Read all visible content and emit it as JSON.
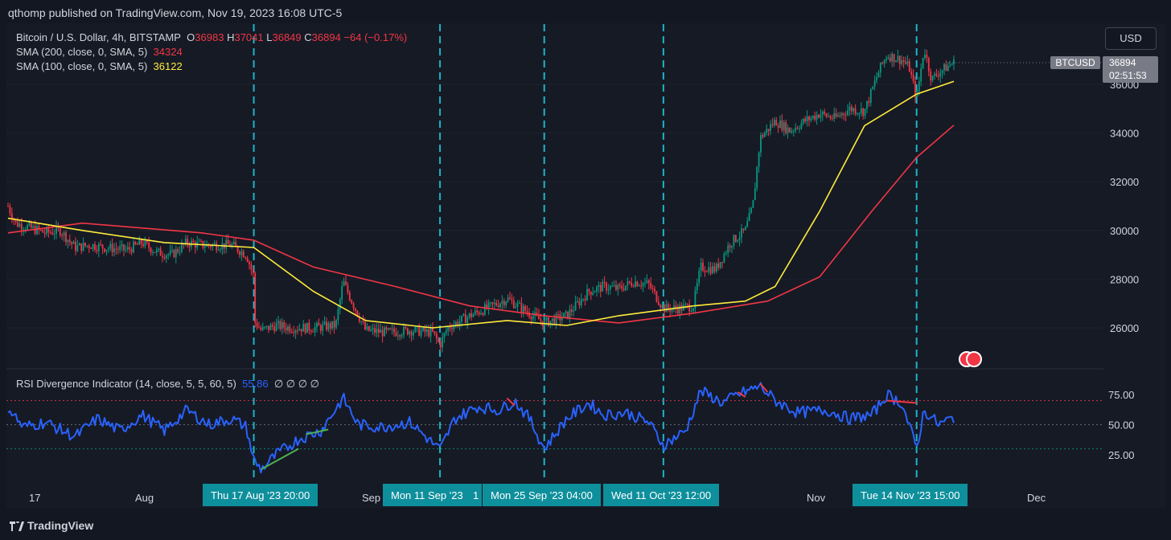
{
  "header": {
    "published": "qthomp published on TradingView.com, Nov 19, 2023 16:08 UTC-5"
  },
  "legend": {
    "symbol": "Bitcoin / U.S. Dollar, 4h, BITSTAMP",
    "o_label": "O",
    "o_value": "36983",
    "h_label": "H",
    "h_value": "37041",
    "l_label": "L",
    "l_value": "36849",
    "c_label": "C",
    "c_value": "36894",
    "change": "−64 (−0.17%)",
    "sma200_label": "SMA (200, close, 0, SMA, 5)",
    "sma200_value": "34324",
    "sma100_label": "SMA (100, close, 0, SMA, 5)",
    "sma100_value": "36122",
    "rsi_label": "RSI Divergence Indicator (14, close, 5, 5, 60, 5)",
    "rsi_value": "55.86",
    "rsi_extra": "∅ ∅ ∅ ∅"
  },
  "price_scale": {
    "currency": "USD",
    "symbol_tag": "BTCUSD",
    "last_price": "36894",
    "countdown": "02:51:53"
  },
  "colors": {
    "up": "#089981",
    "down": "#f23645",
    "sma200": "#f23645",
    "sma100": "#ffeb3b",
    "rsi": "#2962ff",
    "vline": "#1bb5c7",
    "bg": "#161a25"
  },
  "x_axis": {
    "labels": [
      "17",
      "Aug",
      "Sep",
      "Nov",
      "Dec"
    ],
    "highlights": [
      "Thu 17 Aug '23   20:00",
      "Mon 11 Sep '23",
      "1",
      "Mon 25 Sep '23   04:00",
      "Wed 11 Oct '23   12:00",
      "Tue 14 Nov '23   15:00"
    ]
  },
  "footer": {
    "brand": "TradingView"
  },
  "chart_data": [
    {
      "type": "candlestick",
      "title": "Bitcoin / U.S. Dollar, 4h, BITSTAMP",
      "ylim": [
        24500,
        38500
      ],
      "yticks": [
        26000,
        28000,
        30000,
        32000,
        34000,
        36000
      ],
      "close_path": [
        [
          "2023-07-15",
          31000
        ],
        [
          "2023-07-16",
          30300
        ],
        [
          "2023-07-18",
          30100
        ],
        [
          "2023-07-20",
          29900
        ],
        [
          "2023-07-22",
          30000
        ],
        [
          "2023-07-24",
          29300
        ],
        [
          "2023-07-26",
          29400
        ],
        [
          "2023-07-28",
          29300
        ],
        [
          "2023-07-31",
          29200
        ],
        [
          "2023-08-02",
          29500
        ],
        [
          "2023-08-04",
          29100
        ],
        [
          "2023-08-06",
          29000
        ],
        [
          "2023-08-08",
          29500
        ],
        [
          "2023-08-10",
          29400
        ],
        [
          "2023-08-12",
          29400
        ],
        [
          "2023-08-14",
          29400
        ],
        [
          "2023-08-16",
          29000
        ],
        [
          "2023-08-17",
          28100
        ],
        [
          "2023-08-17",
          26300
        ],
        [
          "2023-08-18",
          25900
        ],
        [
          "2023-08-20",
          26100
        ],
        [
          "2023-08-22",
          26000
        ],
        [
          "2023-08-25",
          26000
        ],
        [
          "2023-08-28",
          26100
        ],
        [
          "2023-08-29",
          27900
        ],
        [
          "2023-08-30",
          27200
        ],
        [
          "2023-09-01",
          25900
        ],
        [
          "2023-09-04",
          25800
        ],
        [
          "2023-09-07",
          25900
        ],
        [
          "2023-09-10",
          25800
        ],
        [
          "2023-09-11",
          25300
        ],
        [
          "2023-09-12",
          26000
        ],
        [
          "2023-09-15",
          26500
        ],
        [
          "2023-09-18",
          26900
        ],
        [
          "2023-09-20",
          27200
        ],
        [
          "2023-09-23",
          26600
        ],
        [
          "2023-09-25",
          26200
        ],
        [
          "2023-09-28",
          26500
        ],
        [
          "2023-10-01",
          27500
        ],
        [
          "2023-10-03",
          27700
        ],
        [
          "2023-10-05",
          27600
        ],
        [
          "2023-10-07",
          27900
        ],
        [
          "2023-10-09",
          27800
        ],
        [
          "2023-10-11",
          26800
        ],
        [
          "2023-10-13",
          26800
        ],
        [
          "2023-10-15",
          26900
        ],
        [
          "2023-10-16",
          28500
        ],
        [
          "2023-10-18",
          28400
        ],
        [
          "2023-10-20",
          29500
        ],
        [
          "2023-10-22",
          30000
        ],
        [
          "2023-10-23",
          31000
        ],
        [
          "2023-10-24",
          33800
        ],
        [
          "2023-10-26",
          34500
        ],
        [
          "2023-10-28",
          34100
        ],
        [
          "2023-10-30",
          34500
        ],
        [
          "2023-11-01",
          34800
        ],
        [
          "2023-11-03",
          34600
        ],
        [
          "2023-11-05",
          35000
        ],
        [
          "2023-11-07",
          34900
        ],
        [
          "2023-11-09",
          36600
        ],
        [
          "2023-11-10",
          37200
        ],
        [
          "2023-11-12",
          37000
        ],
        [
          "2023-11-13",
          36700
        ],
        [
          "2023-11-14",
          35400
        ],
        [
          "2023-11-15",
          37500
        ],
        [
          "2023-11-16",
          36200
        ],
        [
          "2023-11-17",
          36500
        ],
        [
          "2023-11-18",
          36700
        ],
        [
          "2023-11-19",
          36894
        ]
      ],
      "sma200": [
        [
          "2023-07-15",
          29900
        ],
        [
          "2023-07-25",
          30300
        ],
        [
          "2023-08-10",
          29900
        ],
        [
          "2023-08-17",
          29600
        ],
        [
          "2023-08-25",
          28500
        ],
        [
          "2023-09-05",
          27700
        ],
        [
          "2023-09-15",
          26900
        ],
        [
          "2023-09-25",
          26500
        ],
        [
          "2023-10-05",
          26200
        ],
        [
          "2023-10-15",
          26600
        ],
        [
          "2023-10-25",
          27100
        ],
        [
          "2023-11-01",
          28100
        ],
        [
          "2023-11-08",
          30800
        ],
        [
          "2023-11-14",
          33000
        ],
        [
          "2023-11-19",
          34324
        ]
      ],
      "sma100": [
        [
          "2023-07-15",
          30500
        ],
        [
          "2023-07-25",
          30000
        ],
        [
          "2023-08-05",
          29500
        ],
        [
          "2023-08-17",
          29300
        ],
        [
          "2023-08-25",
          27500
        ],
        [
          "2023-09-01",
          26300
        ],
        [
          "2023-09-10",
          26000
        ],
        [
          "2023-09-20",
          26300
        ],
        [
          "2023-09-28",
          26100
        ],
        [
          "2023-10-05",
          26500
        ],
        [
          "2023-10-15",
          26900
        ],
        [
          "2023-10-22",
          27100
        ],
        [
          "2023-10-26",
          27700
        ],
        [
          "2023-11-01",
          30800
        ],
        [
          "2023-11-07",
          34300
        ],
        [
          "2023-11-14",
          35600
        ],
        [
          "2023-11-19",
          36122
        ]
      ],
      "event_lines": [
        "2023-08-17",
        "2023-09-11",
        "2023-09-25",
        "2023-10-11",
        "2023-11-14"
      ]
    },
    {
      "type": "line",
      "title": "RSI Divergence Indicator (14, close, 5, 5, 60, 5)",
      "ylim": [
        10,
        90
      ],
      "yticks": [
        25.0,
        50.0,
        75.0
      ],
      "ytick_labels": [
        "25.00",
        "50.00",
        "75.00"
      ],
      "bands": [
        70,
        50,
        30
      ],
      "series": [
        {
          "name": "",
          "points": [
            [
              "2023-07-15",
              65
            ],
            [
              "2023-07-17",
              48
            ],
            [
              "2023-07-20",
              52
            ],
            [
              "2023-07-24",
              40
            ],
            [
              "2023-07-27",
              55
            ],
            [
              "2023-07-30",
              45
            ],
            [
              "2023-08-02",
              58
            ],
            [
              "2023-08-05",
              45
            ],
            [
              "2023-08-08",
              62
            ],
            [
              "2023-08-11",
              50
            ],
            [
              "2023-08-14",
              55
            ],
            [
              "2023-08-16",
              48
            ],
            [
              "2023-08-17",
              20
            ],
            [
              "2023-08-18",
              13
            ],
            [
              "2023-08-20",
              25
            ],
            [
              "2023-08-23",
              38
            ],
            [
              "2023-08-26",
              45
            ],
            [
              "2023-08-29",
              72
            ],
            [
              "2023-08-31",
              50
            ],
            [
              "2023-09-03",
              48
            ],
            [
              "2023-09-07",
              52
            ],
            [
              "2023-09-11",
              29
            ],
            [
              "2023-09-13",
              55
            ],
            [
              "2023-09-16",
              65
            ],
            [
              "2023-09-19",
              62
            ],
            [
              "2023-09-21",
              70
            ],
            [
              "2023-09-23",
              55
            ],
            [
              "2023-09-25",
              30
            ],
            [
              "2023-09-28",
              55
            ],
            [
              "2023-10-01",
              68
            ],
            [
              "2023-10-03",
              58
            ],
            [
              "2023-10-06",
              60
            ],
            [
              "2023-10-09",
              52
            ],
            [
              "2023-10-11",
              33
            ],
            [
              "2023-10-14",
              45
            ],
            [
              "2023-10-16",
              78
            ],
            [
              "2023-10-19",
              68
            ],
            [
              "2023-10-21",
              75
            ],
            [
              "2023-10-24",
              82
            ],
            [
              "2023-10-26",
              70
            ],
            [
              "2023-10-29",
              60
            ],
            [
              "2023-11-02",
              62
            ],
            [
              "2023-11-05",
              55
            ],
            [
              "2023-11-08",
              58
            ],
            [
              "2023-11-10",
              75
            ],
            [
              "2023-11-12",
              68
            ],
            [
              "2023-11-14",
              30
            ],
            [
              "2023-11-15",
              62
            ],
            [
              "2023-11-17",
              50
            ],
            [
              "2023-11-19",
              56
            ]
          ]
        }
      ],
      "divergences": [
        {
          "type": "bullish",
          "from": [
            "2023-08-18",
            13
          ],
          "to": [
            "2023-08-23",
            30
          ]
        },
        {
          "type": "bullish",
          "from": [
            "2023-08-24",
            42
          ],
          "to": [
            "2023-08-27",
            46
          ]
        },
        {
          "type": "bearish",
          "from": [
            "2023-09-20",
            72
          ],
          "to": [
            "2023-09-21",
            66
          ]
        },
        {
          "type": "bearish",
          "from": [
            "2023-10-21",
            77
          ],
          "to": [
            "2023-10-22",
            73
          ]
        },
        {
          "type": "bearish",
          "from": [
            "2023-10-24",
            84
          ],
          "to": [
            "2023-10-25",
            77
          ]
        },
        {
          "type": "bearish",
          "from": [
            "2023-11-10",
            70
          ],
          "to": [
            "2023-11-14",
            68
          ]
        }
      ]
    }
  ]
}
